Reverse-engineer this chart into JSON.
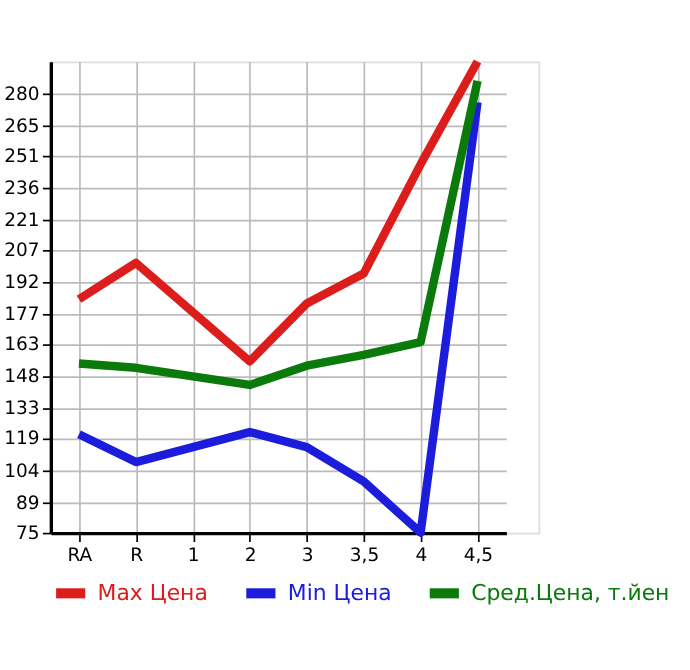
{
  "chart_data": {
    "type": "line",
    "categories": [
      "RA",
      "R",
      "1",
      "2",
      "3",
      "3,5",
      "4",
      "4,5"
    ],
    "series": [
      {
        "name": "Max Цена",
        "color": "#dd1c1c",
        "values": [
          184,
          201,
          null,
          155,
          182,
          196,
          247,
          295
        ]
      },
      {
        "name": "Min Цена",
        "color": "#1c1cdd",
        "values": [
          121,
          108,
          null,
          122,
          115,
          99,
          75,
          276
        ]
      },
      {
        "name": "Сред.Цена, т.йен",
        "color": "#0a7a0a",
        "values": [
          154,
          152,
          null,
          144,
          153,
          158,
          164,
          286
        ]
      }
    ],
    "ylim": [
      75,
      295
    ],
    "yticks": [
      75,
      89,
      104,
      119,
      133,
      148,
      163,
      177,
      192,
      207,
      221,
      236,
      251,
      265,
      280
    ],
    "grid": true,
    "legend": "bottom",
    "marker": "none",
    "line_style": "solid"
  }
}
